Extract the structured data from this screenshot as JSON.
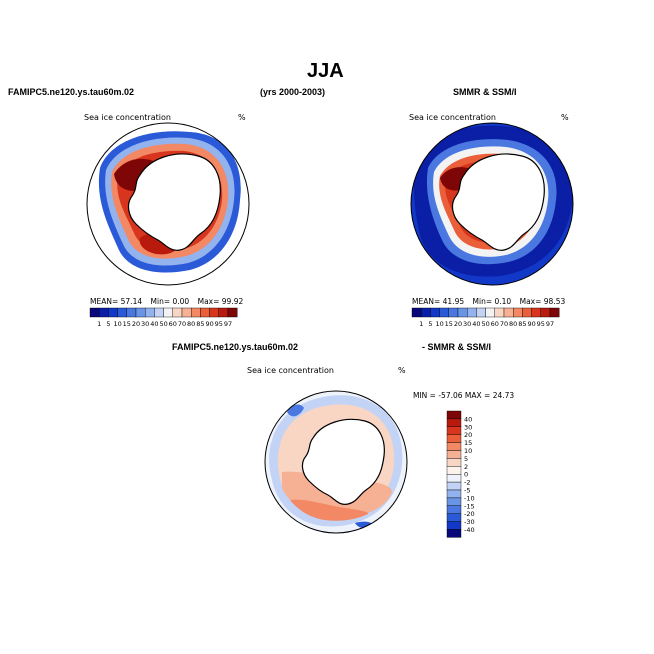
{
  "title": "JJA",
  "header": {
    "model_name": "FAMIPC5.ne120.ys.tau60m.02",
    "years": "(yrs 2000-2003)",
    "obs_name": "SMMR & SSM/I"
  },
  "panels": {
    "model": {
      "field": "Sea ice concentration",
      "units": "%",
      "stats": {
        "mean_label": "MEAN=",
        "mean": "57.14",
        "min_label": "Min=",
        "min": "0.00",
        "max_label": "Max=",
        "max": "99.92"
      }
    },
    "obs": {
      "field": "Sea ice concentration",
      "units": "%",
      "stats": {
        "mean_label": "MEAN=",
        "mean": "41.95",
        "min_label": "Min=",
        "min": "0.10",
        "max_label": "Max=",
        "max": "98.53"
      }
    },
    "diff": {
      "label_left": "FAMIPC5.ne120.ys.tau60m.02",
      "label_right": "- SMMR & SSM/I",
      "field": "Sea ice concentration",
      "units": "%",
      "minmax": "MIN = -57.06 MAX =  24.73"
    }
  },
  "colorbar_concentration": {
    "labels": [
      "1",
      "5",
      "10",
      "15",
      "20",
      "30",
      "40",
      "50",
      "60",
      "70",
      "80",
      "85",
      "90",
      "95",
      "97"
    ],
    "colors": [
      "#08087a",
      "#0a1fa6",
      "#1238c8",
      "#2b5ad8",
      "#4a78e0",
      "#6a94e6",
      "#93b3ee",
      "#c2d3f5",
      "#f3f3f3",
      "#f9d6c4",
      "#f6b093",
      "#f28864",
      "#ea5f3a",
      "#d7351d",
      "#b81a0e",
      "#7f0606"
    ]
  },
  "colorbar_difference": {
    "labels": [
      "40",
      "30",
      "20",
      "15",
      "10",
      "5",
      "2",
      "0",
      "-2",
      "-5",
      "-10",
      "-15",
      "-20",
      "-30",
      "-40"
    ],
    "colors": [
      "#7f0606",
      "#b81a0e",
      "#d7351d",
      "#ea5f3a",
      "#f28864",
      "#f6b093",
      "#f9d6c4",
      "#fdf2ec",
      "#eef2fb",
      "#c2d3f5",
      "#93b3ee",
      "#6a94e6",
      "#4a78e0",
      "#2b5ad8",
      "#1238c8",
      "#08087a"
    ]
  }
}
